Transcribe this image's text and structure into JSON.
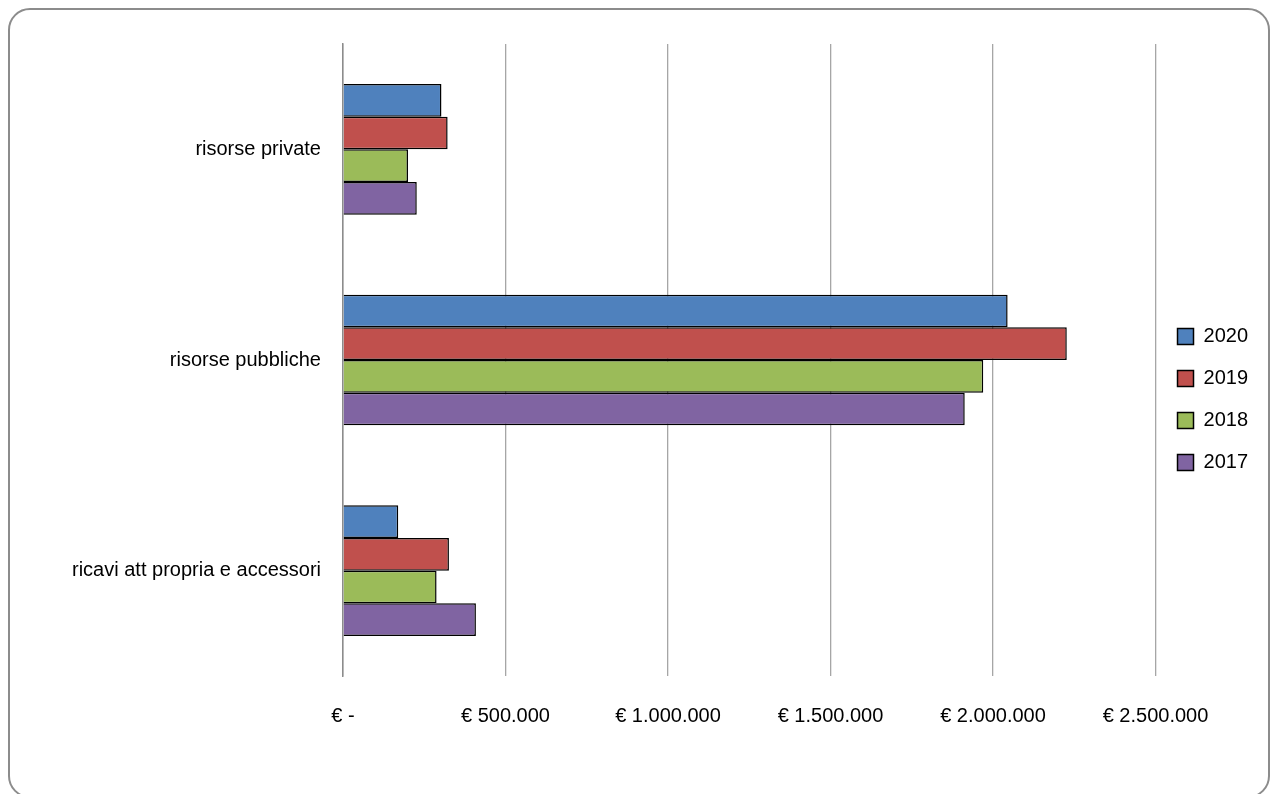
{
  "chart_data": {
    "type": "bar",
    "orientation": "horizontal",
    "categories": [
      "risorse private",
      "risorse pubbliche",
      "ricavi att propria e accessori"
    ],
    "series": [
      {
        "name": "2020",
        "color": "#4f81bd",
        "values": [
          303000,
          2045000,
          170000
        ]
      },
      {
        "name": "2019",
        "color": "#c0504d",
        "values": [
          322000,
          2227000,
          326000
        ]
      },
      {
        "name": "2018",
        "color": "#9bbb59",
        "values": [
          200000,
          1970000,
          288000
        ]
      },
      {
        "name": "2017",
        "color": "#8064a2",
        "values": [
          227000,
          1913000,
          409000
        ]
      }
    ],
    "xlim": [
      0,
      2500000
    ],
    "xticks": [
      {
        "value": 0,
        "label": "€ -"
      },
      {
        "value": 500000,
        "label": "€ 500.000"
      },
      {
        "value": 1000000,
        "label": "€ 1.000.000"
      },
      {
        "value": 1500000,
        "label": "€ 1.500.000"
      },
      {
        "value": 2000000,
        "label": "€ 2.000.000"
      },
      {
        "value": 2500000,
        "label": "€ 2.500.000"
      }
    ],
    "grid": "x",
    "legend": "right"
  }
}
